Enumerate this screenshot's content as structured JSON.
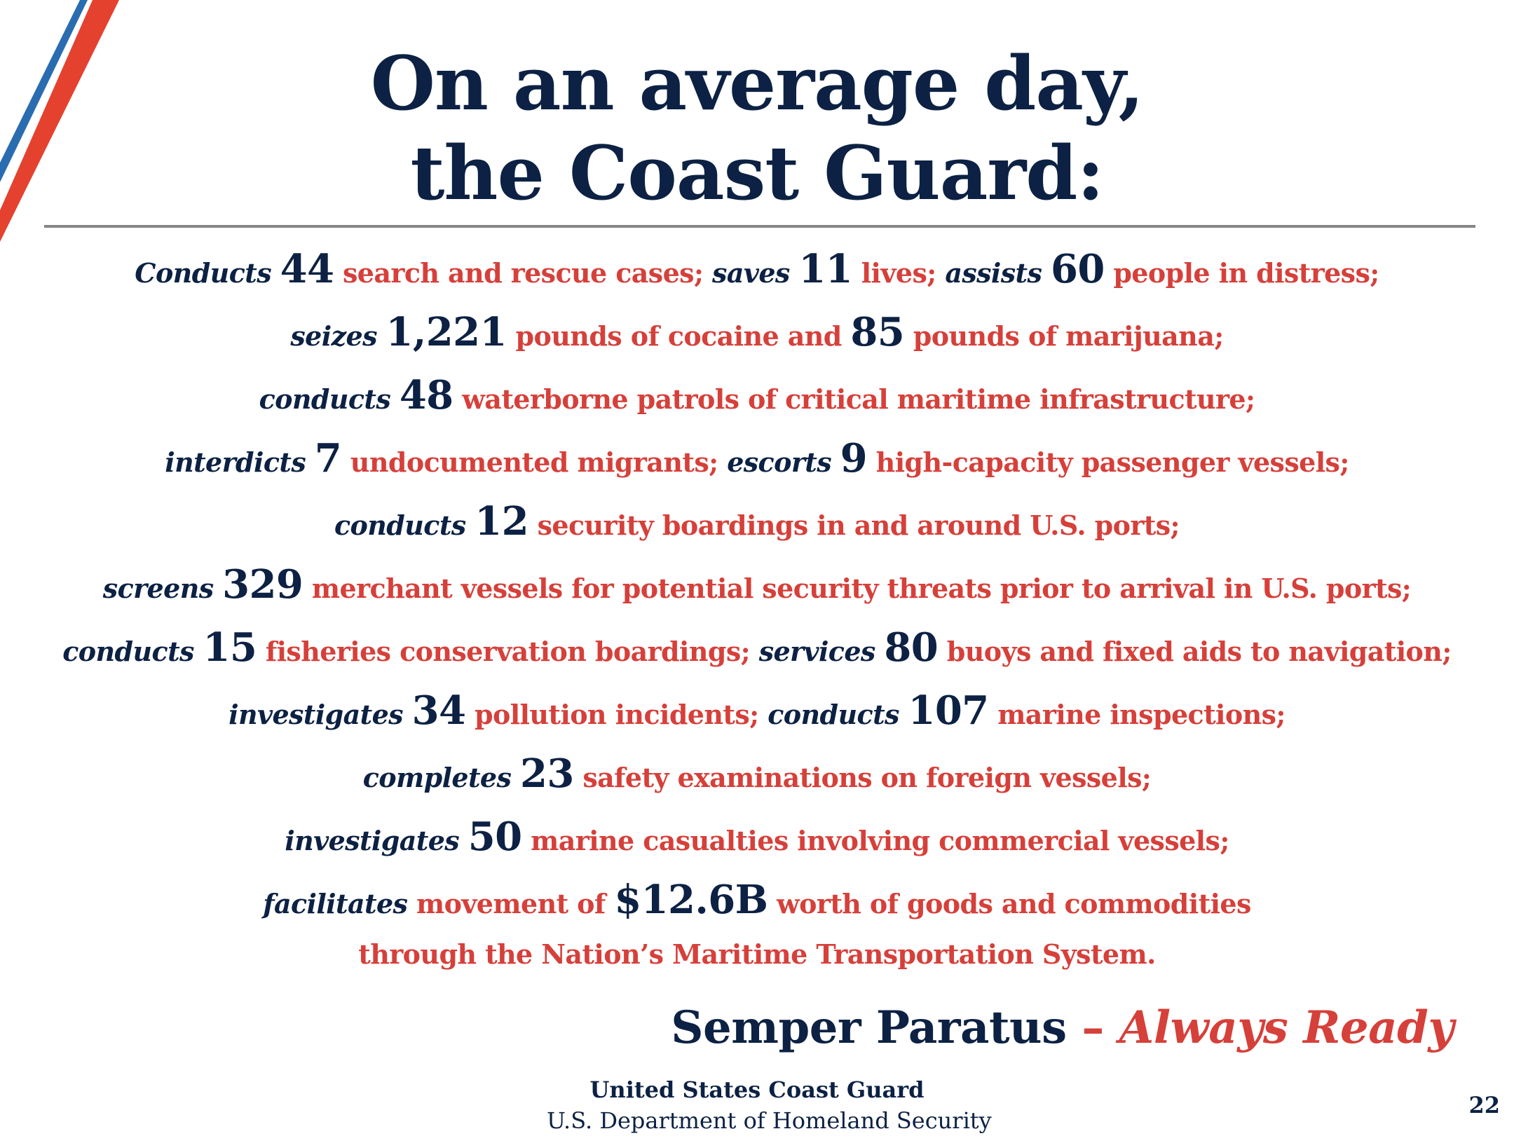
{
  "title": {
    "line1": "On an average day,",
    "line2": "the Coast Guard:"
  },
  "stats": [
    [
      {
        "style": "verb",
        "text": "Conducts"
      },
      {
        "style": "num",
        "text": "44"
      },
      {
        "style": "desc",
        "text": "search and rescue cases;"
      },
      {
        "style": "verb",
        "text": "saves"
      },
      {
        "style": "num",
        "text": "11"
      },
      {
        "style": "desc",
        "text": "lives;"
      },
      {
        "style": "verb",
        "text": "assists"
      },
      {
        "style": "num",
        "text": "60"
      },
      {
        "style": "desc",
        "text": "people in distress;"
      }
    ],
    [
      {
        "style": "verb",
        "text": "seizes"
      },
      {
        "style": "num",
        "text": "1,221"
      },
      {
        "style": "desc",
        "text": "pounds of cocaine and"
      },
      {
        "style": "num",
        "text": "85"
      },
      {
        "style": "desc",
        "text": "pounds of marijuana;"
      }
    ],
    [
      {
        "style": "verb",
        "text": "conducts"
      },
      {
        "style": "num",
        "text": "48"
      },
      {
        "style": "desc",
        "text": "waterborne patrols of critical maritime infrastructure;"
      }
    ],
    [
      {
        "style": "verb",
        "text": "interdicts"
      },
      {
        "style": "num",
        "text": "7"
      },
      {
        "style": "desc",
        "text": "undocumented migrants;"
      },
      {
        "style": "verb",
        "text": "escorts"
      },
      {
        "style": "num",
        "text": "9"
      },
      {
        "style": "desc",
        "text": "high-capacity passenger vessels;"
      }
    ],
    [
      {
        "style": "verb",
        "text": "conducts"
      },
      {
        "style": "num",
        "text": "12"
      },
      {
        "style": "desc",
        "text": "security boardings in and around U.S. ports;"
      }
    ],
    [
      {
        "style": "verb",
        "text": "screens"
      },
      {
        "style": "num",
        "text": "329"
      },
      {
        "style": "desc",
        "text": "merchant vessels for potential security threats prior to arrival in U.S. ports;"
      }
    ],
    [
      {
        "style": "verb",
        "text": "conducts"
      },
      {
        "style": "num",
        "text": "15"
      },
      {
        "style": "desc",
        "text": "fisheries conservation boardings;"
      },
      {
        "style": "verb",
        "text": "services"
      },
      {
        "style": "num",
        "text": "80"
      },
      {
        "style": "desc",
        "text": "buoys and fixed aids to navigation;"
      }
    ],
    [
      {
        "style": "verb",
        "text": "investigates"
      },
      {
        "style": "num",
        "text": "34"
      },
      {
        "style": "desc",
        "text": "pollution incidents;"
      },
      {
        "style": "verb",
        "text": "conducts"
      },
      {
        "style": "num",
        "text": "107"
      },
      {
        "style": "desc",
        "text": "marine inspections;"
      }
    ],
    [
      {
        "style": "verb",
        "text": "completes"
      },
      {
        "style": "num",
        "text": "23"
      },
      {
        "style": "desc",
        "text": "safety examinations on foreign vessels;"
      }
    ],
    [
      {
        "style": "verb",
        "text": "investigates"
      },
      {
        "style": "num",
        "text": "50"
      },
      {
        "style": "desc",
        "text": "marine casualties involving commercial vessels;"
      }
    ],
    [
      {
        "style": "verb",
        "text": "facilitates"
      },
      {
        "style": "desc",
        "text": "movement of"
      },
      {
        "style": "num",
        "text": "$12.6B"
      },
      {
        "style": "desc",
        "text": "worth of goods and commodities"
      }
    ],
    [
      {
        "style": "desc",
        "text": "through the Nation’s Maritime Transportation System."
      }
    ]
  ],
  "motto": {
    "part1": "Semper Paratus",
    "part2": "–",
    "part3": "Always Ready"
  },
  "footer": {
    "org": "United States Coast Guard",
    "dept": "U.S. Department of Homeland Security"
  },
  "page_number": "22",
  "colors": {
    "navy": "#0c2143",
    "red": "#d6403a",
    "stripe_blue": "#2a6cb0",
    "stripe_red": "#e4412f",
    "rule_gray": "#858585"
  }
}
